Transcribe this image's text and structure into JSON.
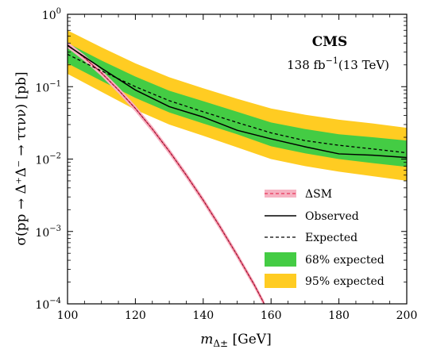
{
  "chart_data": {
    "type": "line",
    "experiment": "CMS",
    "lumi": "138 fb",
    "lumi_exp": "−1",
    "energy": "(13 TeV)",
    "xlabel_main": "m",
    "xlabel_sub": "Δ±",
    "xlabel_unit": " [GeV]",
    "ylabel": "σ(pp → Δ⁺Δ⁻ → ττνν) [pb]",
    "x_range": [
      100,
      200
    ],
    "y_range": [
      0.0001,
      1
    ],
    "y_scale": "log",
    "x_ticks": [
      100,
      120,
      140,
      160,
      180,
      200
    ],
    "y_ticks": [
      {
        "value": 0.0001,
        "base": "10",
        "exp": "−4"
      },
      {
        "value": 0.001,
        "base": "10",
        "exp": "−3"
      },
      {
        "value": 0.01,
        "base": "10",
        "exp": "−2"
      },
      {
        "value": 0.1,
        "base": "10",
        "exp": "−1"
      },
      {
        "value": 1,
        "base": "10",
        "exp": "0"
      }
    ],
    "legend_position": "bottom-right",
    "x": [
      100,
      110,
      120,
      130,
      140,
      150,
      160,
      170,
      180,
      190,
      200
    ],
    "band95": {
      "name": "95% expected",
      "color": "#FFCC22",
      "lower": [
        0.15,
        0.085,
        0.048,
        0.03,
        0.021,
        0.0145,
        0.01,
        0.008,
        0.0067,
        0.0058,
        0.005
      ],
      "upper": [
        0.6,
        0.35,
        0.21,
        0.135,
        0.095,
        0.068,
        0.05,
        0.041,
        0.035,
        0.031,
        0.027
      ]
    },
    "band68": {
      "name": "68% expected",
      "color": "#44CC44",
      "lower": [
        0.21,
        0.12,
        0.07,
        0.044,
        0.031,
        0.022,
        0.015,
        0.012,
        0.01,
        0.0088,
        0.0078
      ],
      "upper": [
        0.4,
        0.23,
        0.138,
        0.088,
        0.063,
        0.045,
        0.032,
        0.026,
        0.022,
        0.02,
        0.018
      ]
    },
    "expected": {
      "name": "Expected",
      "values": [
        0.28,
        0.165,
        0.1,
        0.064,
        0.045,
        0.032,
        0.023,
        0.018,
        0.0155,
        0.0138,
        0.0122
      ]
    },
    "observed": {
      "name": "Observed",
      "values": [
        0.37,
        0.18,
        0.09,
        0.053,
        0.038,
        0.025,
        0.019,
        0.0148,
        0.0118,
        0.0113,
        0.0105
      ]
    },
    "theory": {
      "name": "ΔSM",
      "color": "#E8365A",
      "band_color": "#F6B2C2",
      "x": [
        100,
        105,
        110,
        115,
        120,
        125,
        130,
        135,
        140,
        145,
        150,
        155,
        158
      ],
      "values": [
        0.38,
        0.25,
        0.155,
        0.09,
        0.05,
        0.026,
        0.0128,
        0.006,
        0.0027,
        0.00115,
        0.00047,
        0.000185,
        0.0001
      ]
    }
  }
}
